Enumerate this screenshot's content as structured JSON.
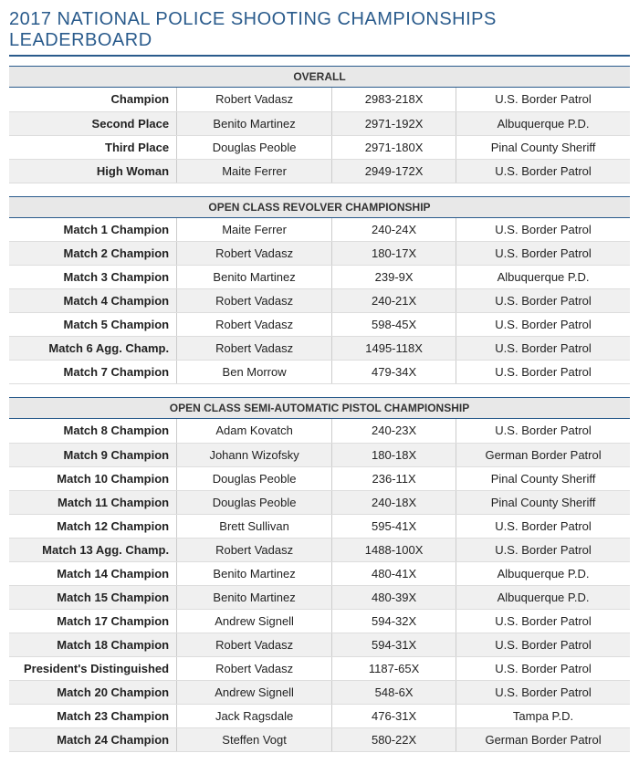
{
  "title": "2017 NATIONAL POLICE SHOOTING CHAMPIONSHIPS LEADERBOARD",
  "colors": {
    "accent": "#2a5b8c",
    "header_bg": "#e8e8e8",
    "row_even": "#f0f0f0",
    "row_odd": "#ffffff",
    "text": "#222222",
    "border": "#cccccc"
  },
  "layout": {
    "title_fontsize": 20,
    "header_fontsize": 12,
    "cell_fontsize": 13,
    "col_widths_pct": [
      27,
      25,
      20,
      28
    ]
  },
  "sections": [
    {
      "header": "OVERALL",
      "rows": [
        {
          "label": "Champion",
          "name": "Robert Vadasz",
          "score": "2983-218X",
          "dept": "U.S. Border Patrol"
        },
        {
          "label": "Second Place",
          "name": "Benito Martinez",
          "score": "2971-192X",
          "dept": "Albuquerque P.D."
        },
        {
          "label": "Third Place",
          "name": "Douglas Peoble",
          "score": "2971-180X",
          "dept": "Pinal County Sheriff"
        },
        {
          "label": "High Woman",
          "name": "Maite Ferrer",
          "score": "2949-172X",
          "dept": "U.S. Border Patrol"
        }
      ]
    },
    {
      "header": "OPEN CLASS REVOLVER CHAMPIONSHIP",
      "rows": [
        {
          "label": "Match 1 Champion",
          "name": "Maite Ferrer",
          "score": "240-24X",
          "dept": "U.S. Border Patrol"
        },
        {
          "label": "Match 2 Champion",
          "name": "Robert Vadasz",
          "score": "180-17X",
          "dept": "U.S. Border Patrol"
        },
        {
          "label": "Match 3 Champion",
          "name": "Benito Martinez",
          "score": "239-9X",
          "dept": "Albuquerque P.D."
        },
        {
          "label": "Match 4 Champion",
          "name": "Robert Vadasz",
          "score": "240-21X",
          "dept": "U.S. Border Patrol"
        },
        {
          "label": "Match 5 Champion",
          "name": "Robert Vadasz",
          "score": "598-45X",
          "dept": "U.S. Border Patrol"
        },
        {
          "label": "Match 6 Agg. Champ.",
          "name": "Robert Vadasz",
          "score": "1495-118X",
          "dept": "U.S. Border Patrol"
        },
        {
          "label": "Match 7 Champion",
          "name": "Ben Morrow",
          "score": "479-34X",
          "dept": "U.S. Border Patrol"
        }
      ]
    },
    {
      "header": "OPEN CLASS SEMI-AUTOMATIC PISTOL CHAMPIONSHIP",
      "rows": [
        {
          "label": "Match 8 Champion",
          "name": "Adam Kovatch",
          "score": "240-23X",
          "dept": "U.S. Border Patrol"
        },
        {
          "label": "Match 9 Champion",
          "name": "Johann Wizofsky",
          "score": "180-18X",
          "dept": "German Border Patrol"
        },
        {
          "label": "Match 10 Champion",
          "name": "Douglas Peoble",
          "score": "236-11X",
          "dept": "Pinal County Sheriff"
        },
        {
          "label": "Match 11 Champion",
          "name": "Douglas Peoble",
          "score": "240-18X",
          "dept": "Pinal County Sheriff"
        },
        {
          "label": "Match 12 Champion",
          "name": "Brett Sullivan",
          "score": "595-41X",
          "dept": "U.S. Border Patrol"
        },
        {
          "label": "Match 13 Agg. Champ.",
          "name": "Robert Vadasz",
          "score": "1488-100X",
          "dept": "U.S. Border Patrol"
        },
        {
          "label": "Match 14 Champion",
          "name": "Benito Martinez",
          "score": "480-41X",
          "dept": "Albuquerque P.D."
        },
        {
          "label": "Match 15 Champion",
          "name": "Benito Martinez",
          "score": "480-39X",
          "dept": "Albuquerque P.D."
        },
        {
          "label": "Match 17 Champion",
          "name": "Andrew Signell",
          "score": "594-32X",
          "dept": "U.S. Border Patrol"
        },
        {
          "label": "Match 18 Champion",
          "name": "Robert Vadasz",
          "score": "594-31X",
          "dept": "U.S. Border Patrol"
        },
        {
          "label": "President's Distinguished",
          "name": "Robert Vadasz",
          "score": "1187-65X",
          "dept": "U.S. Border Patrol"
        },
        {
          "label": "Match 20 Champion",
          "name": "Andrew Signell",
          "score": "548-6X",
          "dept": "U.S. Border Patrol"
        },
        {
          "label": "Match 23 Champion",
          "name": "Jack Ragsdale",
          "score": "476-31X",
          "dept": "Tampa P.D."
        },
        {
          "label": "Match 24 Champion",
          "name": "Steffen Vogt",
          "score": "580-22X",
          "dept": "German Border Patrol"
        }
      ]
    }
  ]
}
